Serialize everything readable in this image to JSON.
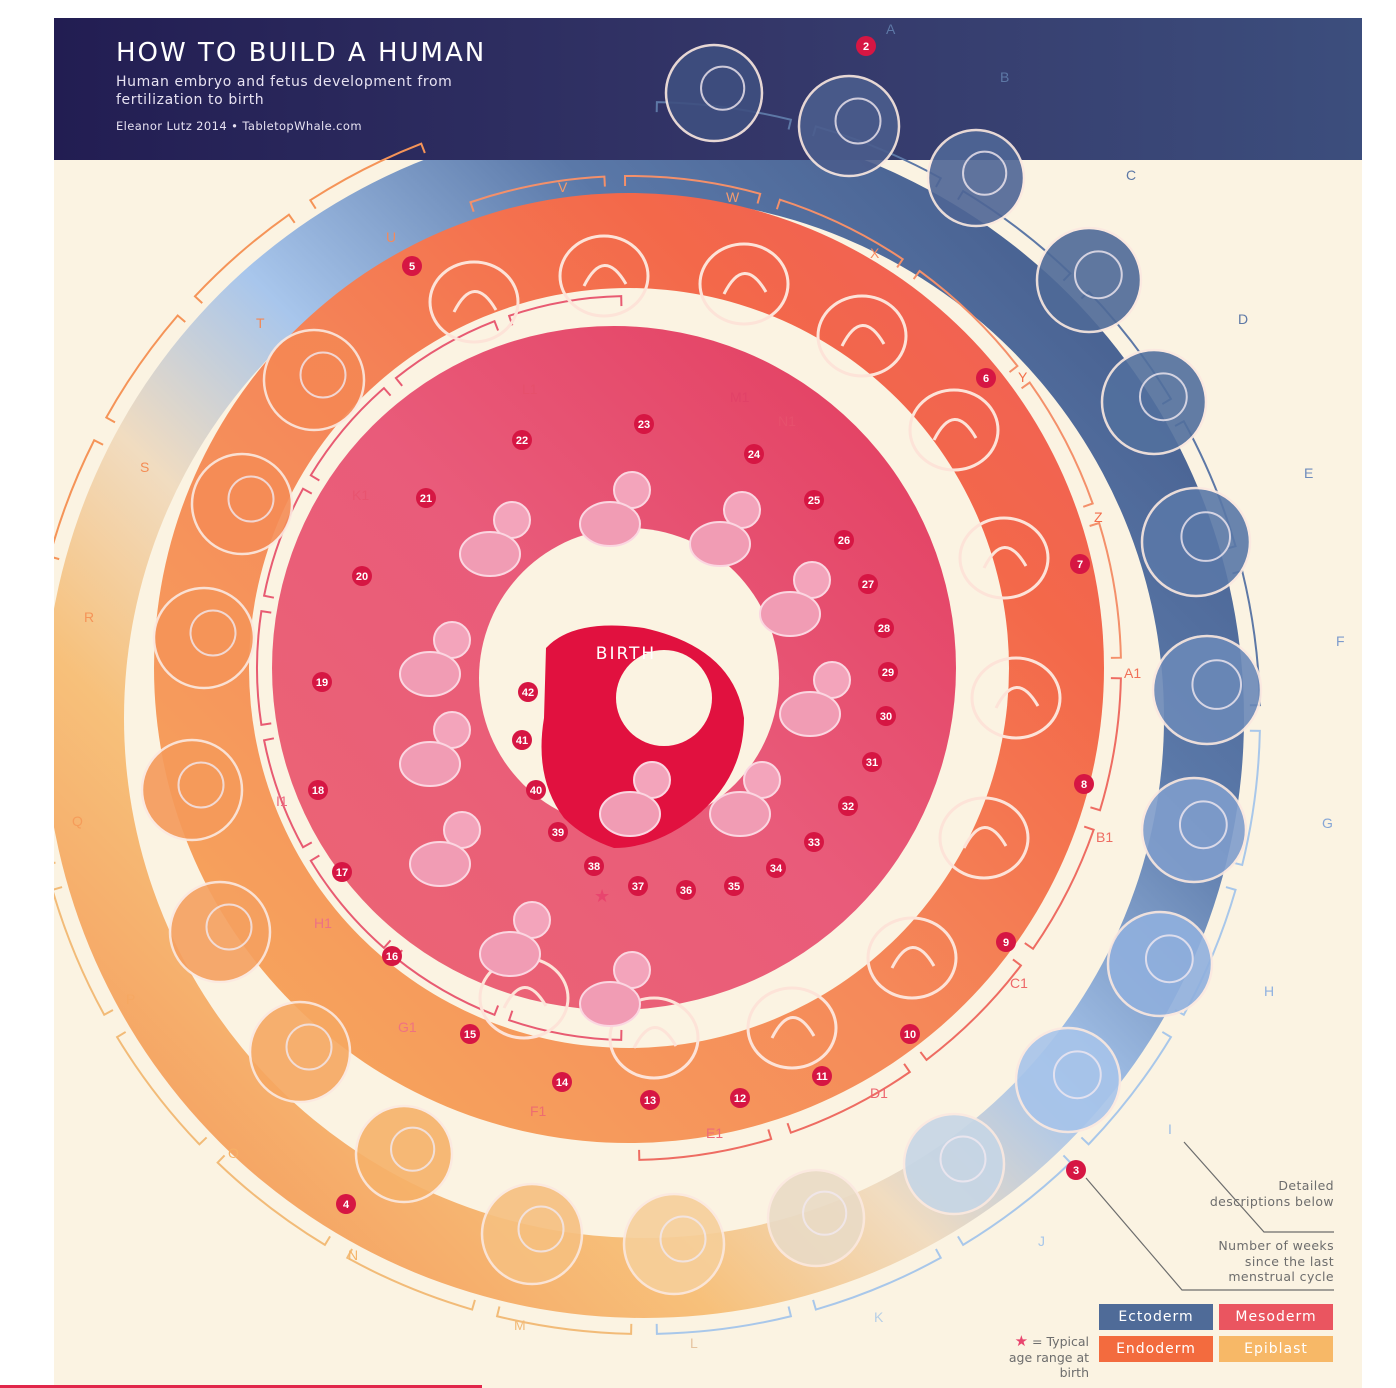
{
  "header": {
    "title": "HOW TO BUILD A HUMAN",
    "subtitle": "Human embryo and fetus development from fertilization to birth",
    "credit": "Eleanor Lutz 2014 • TabletopWhale.com"
  },
  "center_label": "BIRTH",
  "stage_labels": [
    "A",
    "B",
    "C",
    "D",
    "E",
    "F",
    "G",
    "H",
    "I",
    "J",
    "K",
    "L",
    "M",
    "N",
    "O",
    "P",
    "Q",
    "R",
    "S",
    "T",
    "U",
    "V",
    "W",
    "X",
    "Y",
    "Z",
    "A1",
    "B1",
    "C1",
    "D1",
    "E1",
    "F1",
    "G1",
    "H1",
    "I1",
    "J1",
    "K1",
    "L1",
    "M1",
    "N1"
  ],
  "week_labels": [
    "2",
    "3",
    "4",
    "5",
    "6",
    "7",
    "8",
    "9",
    "10",
    "11",
    "12",
    "13",
    "14",
    "15",
    "16",
    "17",
    "18",
    "19",
    "20",
    "21",
    "22",
    "23",
    "24",
    "25",
    "26",
    "27",
    "28",
    "29",
    "30",
    "31",
    "32",
    "33",
    "34",
    "35",
    "36",
    "37",
    "38",
    "39",
    "40",
    "41",
    "42"
  ],
  "notes": {
    "descriptions": "Detailed descriptions below",
    "weeks": "Number of weeks since the last menstrual cycle"
  },
  "legend": {
    "ectoderm": "Ectoderm",
    "mesoderm": "Mesoderm",
    "endoderm": "Endoderm",
    "epiblast": "Epiblast"
  },
  "star_note": "= Typical age range at birth",
  "colors": {
    "header": "#2c2458",
    "ectoderm": "#4f6b98",
    "mesoderm": "#ea5560",
    "endoderm": "#f36b3e",
    "epiblast": "#f7b867",
    "background": "#fbf3e2",
    "birth": "#e1113f"
  }
}
